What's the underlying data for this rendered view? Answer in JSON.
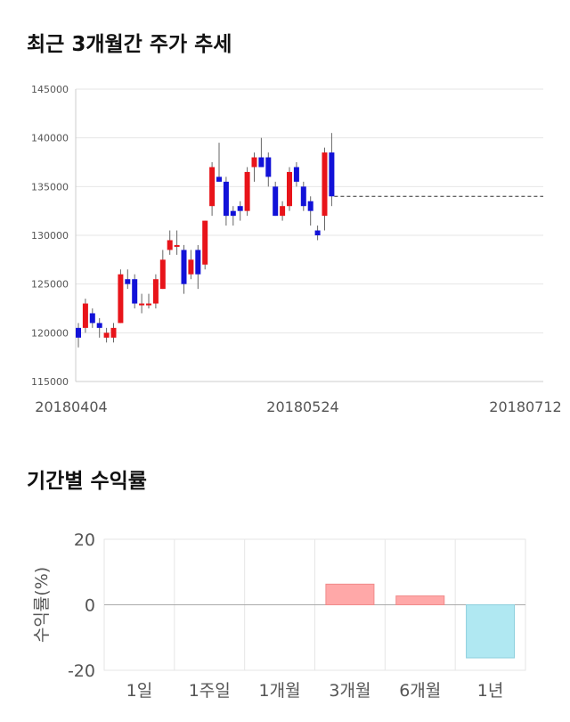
{
  "sections": {
    "price_title": "최근 3개월간 주가 추세",
    "return_title": "기간별 수익률"
  },
  "chart_data": [
    {
      "type": "candlestick",
      "title": "최근 3개월간 주가 추세",
      "ylim": [
        115000,
        145000
      ],
      "y_ticks": [
        115000,
        120000,
        125000,
        130000,
        135000,
        140000,
        145000
      ],
      "x_tick_labels": [
        "20180404",
        "20180524",
        "20180712"
      ],
      "up_color": "#e8141a",
      "down_color": "#1212d8",
      "reference_line": 134000,
      "candles": [
        {
          "o": 120500,
          "h": 121000,
          "l": 118500,
          "c": 119500
        },
        {
          "o": 120500,
          "h": 123500,
          "l": 120000,
          "c": 123000
        },
        {
          "o": 122000,
          "h": 122500,
          "l": 120500,
          "c": 121000
        },
        {
          "o": 121000,
          "h": 121500,
          "l": 119500,
          "c": 120500
        },
        {
          "o": 119500,
          "h": 120500,
          "l": 119000,
          "c": 120000
        },
        {
          "o": 119500,
          "h": 121000,
          "l": 119000,
          "c": 120500
        },
        {
          "o": 121000,
          "h": 126500,
          "l": 121000,
          "c": 126000
        },
        {
          "o": 125500,
          "h": 126500,
          "l": 124500,
          "c": 125000
        },
        {
          "o": 125500,
          "h": 126000,
          "l": 122500,
          "c": 123000
        },
        {
          "o": 123000,
          "h": 124000,
          "l": 122000,
          "c": 123000
        },
        {
          "o": 123000,
          "h": 124000,
          "l": 122500,
          "c": 123000
        },
        {
          "o": 123000,
          "h": 126000,
          "l": 122500,
          "c": 125500
        },
        {
          "o": 124500,
          "h": 128500,
          "l": 124500,
          "c": 127500
        },
        {
          "o": 128500,
          "h": 130500,
          "l": 128000,
          "c": 129500
        },
        {
          "o": 129000,
          "h": 130500,
          "l": 128000,
          "c": 129000
        },
        {
          "o": 128500,
          "h": 129000,
          "l": 124000,
          "c": 125000
        },
        {
          "o": 126000,
          "h": 128500,
          "l": 125500,
          "c": 127500
        },
        {
          "o": 128500,
          "h": 129000,
          "l": 124500,
          "c": 126000
        },
        {
          "o": 127000,
          "h": 131500,
          "l": 126500,
          "c": 131500
        },
        {
          "o": 133000,
          "h": 137500,
          "l": 132000,
          "c": 137000
        },
        {
          "o": 136000,
          "h": 139500,
          "l": 135500,
          "c": 135500
        },
        {
          "o": 135500,
          "h": 136000,
          "l": 131000,
          "c": 132000
        },
        {
          "o": 132500,
          "h": 133000,
          "l": 131000,
          "c": 132000
        },
        {
          "o": 133000,
          "h": 133500,
          "l": 131500,
          "c": 132500
        },
        {
          "o": 132500,
          "h": 137000,
          "l": 132000,
          "c": 136500
        },
        {
          "o": 137000,
          "h": 138500,
          "l": 135500,
          "c": 138000
        },
        {
          "o": 138000,
          "h": 140000,
          "l": 137000,
          "c": 137000
        },
        {
          "o": 138000,
          "h": 138500,
          "l": 135000,
          "c": 136000
        },
        {
          "o": 135000,
          "h": 135500,
          "l": 132000,
          "c": 132000
        },
        {
          "o": 132000,
          "h": 133500,
          "l": 131500,
          "c": 133000
        },
        {
          "o": 133000,
          "h": 137000,
          "l": 132500,
          "c": 136500
        },
        {
          "o": 137000,
          "h": 137500,
          "l": 135000,
          "c": 135500
        },
        {
          "o": 135000,
          "h": 135500,
          "l": 132500,
          "c": 133000
        },
        {
          "o": 133500,
          "h": 134000,
          "l": 131000,
          "c": 132500
        },
        {
          "o": 130500,
          "h": 131000,
          "l": 129500,
          "c": 130000
        },
        {
          "o": 132000,
          "h": 139000,
          "l": 130500,
          "c": 138500
        },
        {
          "o": 138500,
          "h": 140500,
          "l": 133000,
          "c": 134000
        }
      ]
    },
    {
      "type": "bar",
      "title": "기간별 수익률",
      "ylabel": "수익률(%)",
      "ylim": [
        -20,
        20
      ],
      "y_ticks": [
        -20,
        0,
        20
      ],
      "categories": [
        "1일",
        "1주일",
        "1개월",
        "3개월",
        "6개월",
        "1년"
      ],
      "values": [
        0,
        0,
        0,
        6.3,
        2.7,
        -16.2
      ],
      "positive_color": "#ffa8a8",
      "negative_color": "#b0e8f2"
    }
  ]
}
